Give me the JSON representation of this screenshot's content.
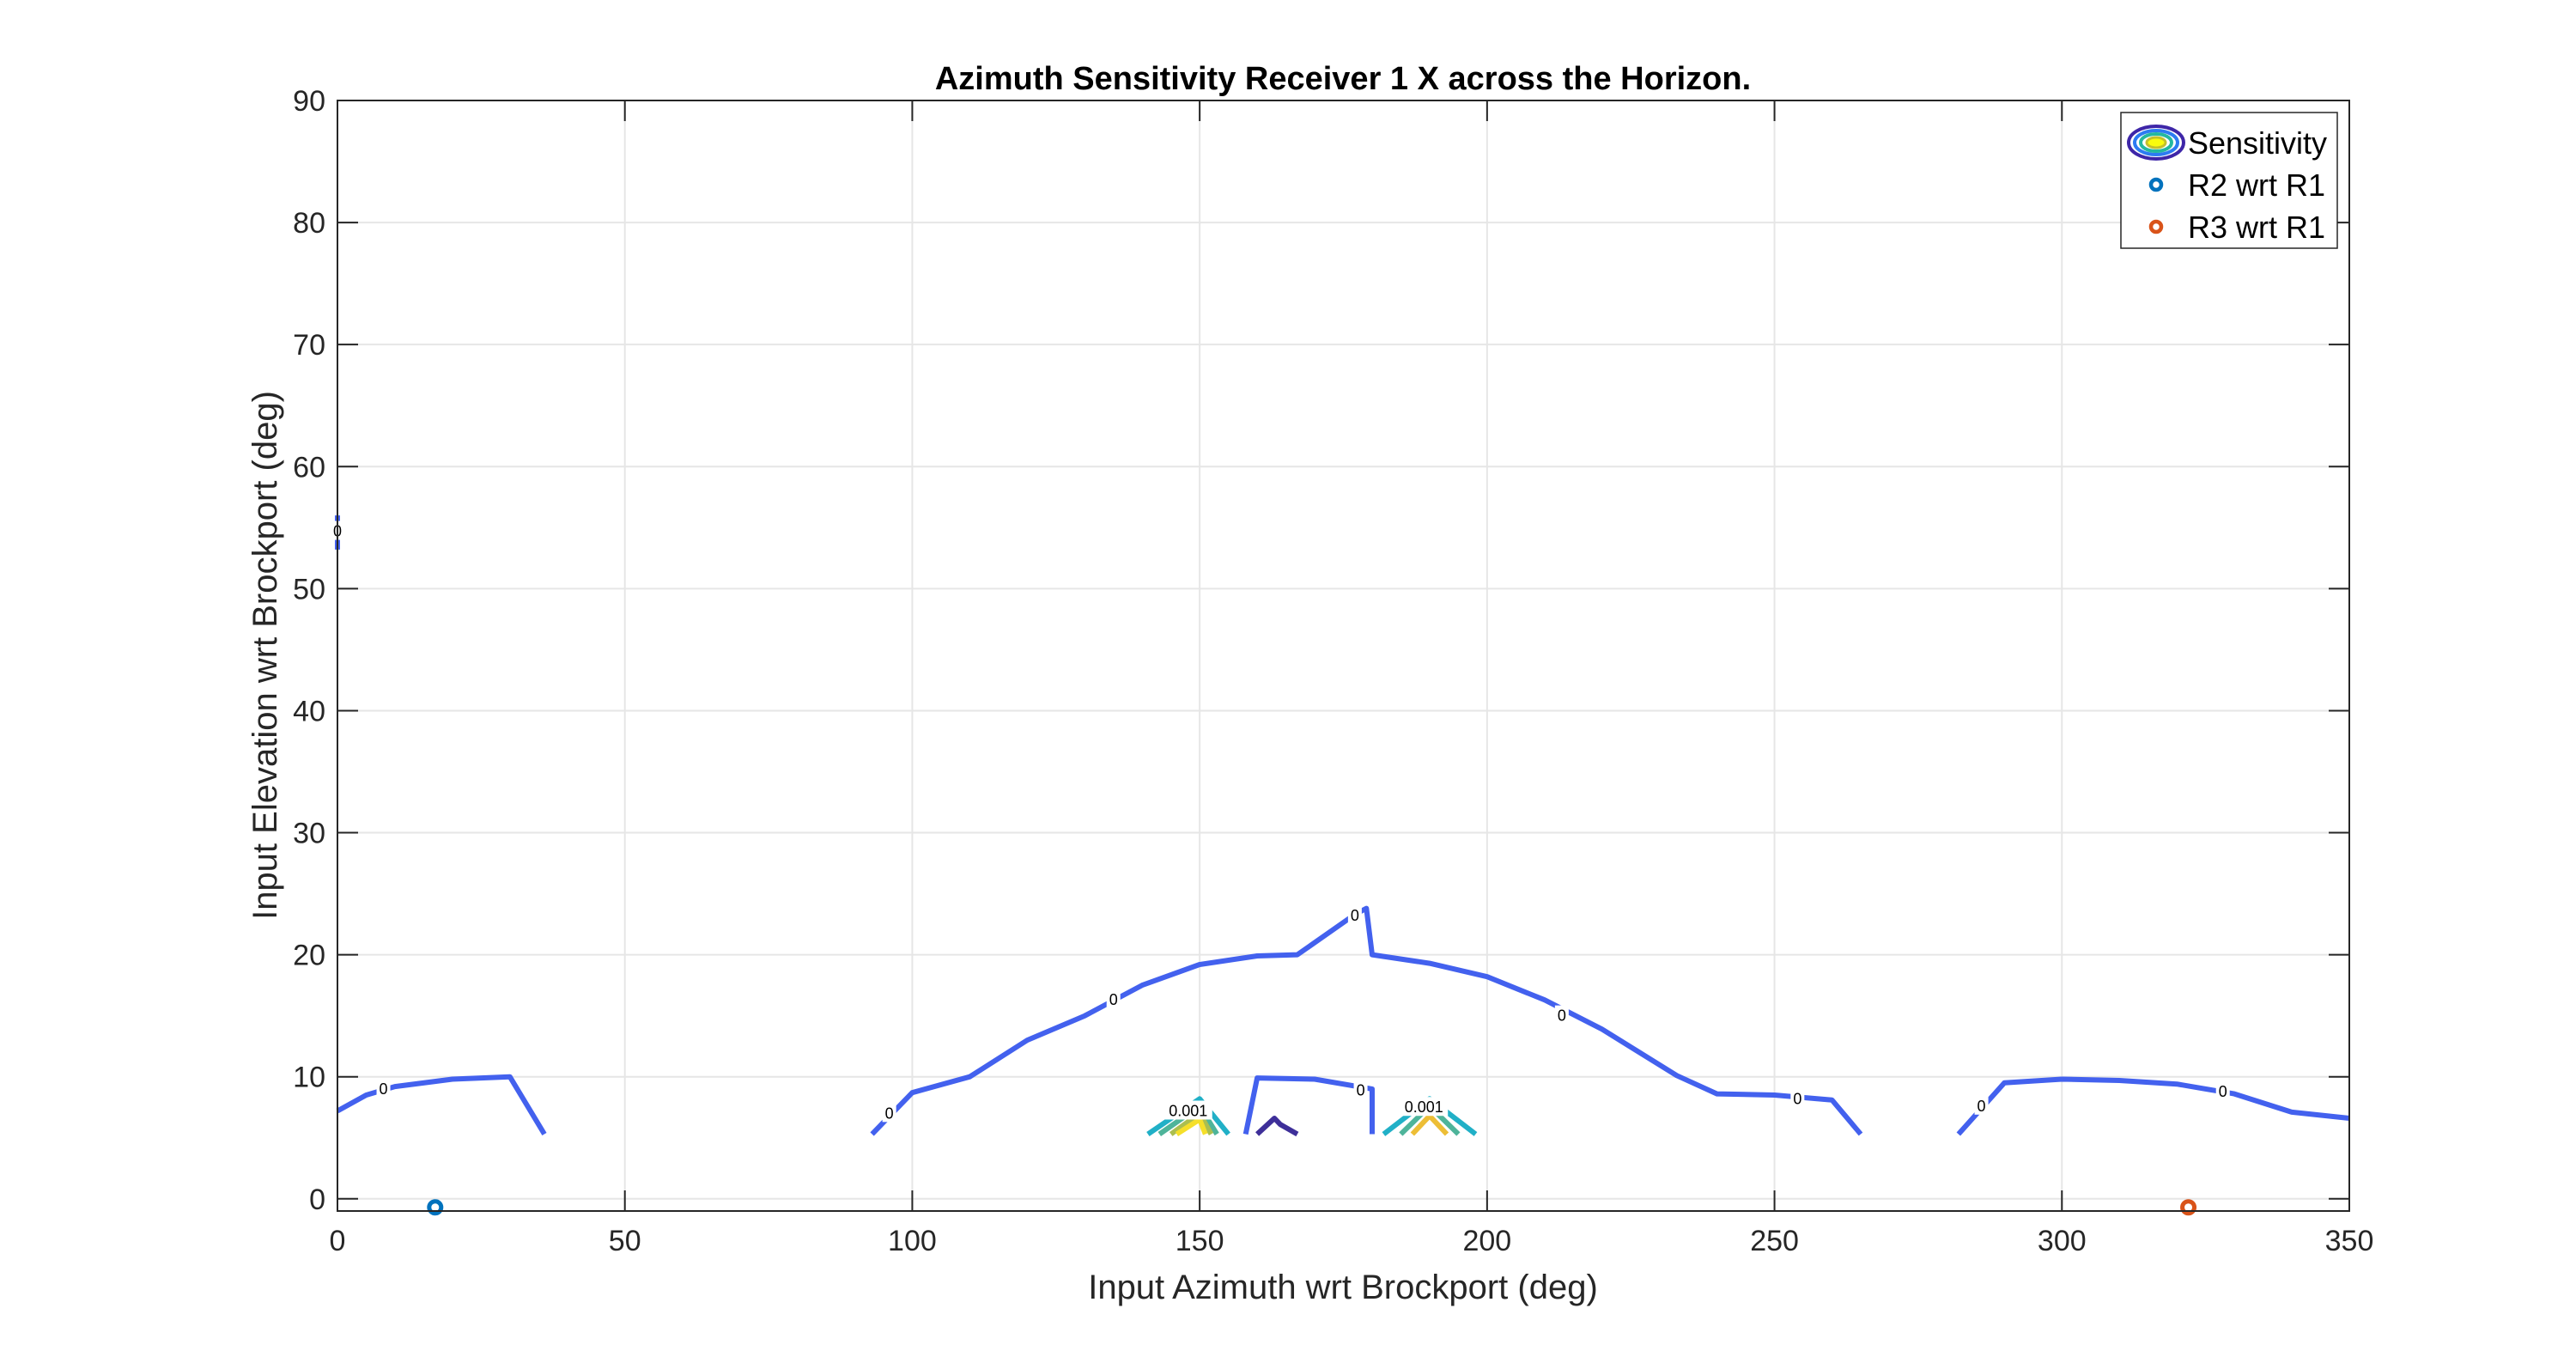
{
  "chart_data": {
    "type": "contour",
    "title": "Azimuth Sensitivity Receiver 1 X across the Horizon.",
    "xlabel": "Input Azimuth wrt Brockport (deg)",
    "ylabel": "Input Elevation wrt Brockport (deg)",
    "xlim": [
      0,
      350
    ],
    "ylim": [
      -1,
      90
    ],
    "xticks": [
      0,
      50,
      100,
      150,
      200,
      250,
      300,
      350
    ],
    "yticks": [
      0,
      10,
      20,
      30,
      40,
      50,
      60,
      70,
      80,
      90
    ],
    "grid": true,
    "legend": {
      "placement": "top-right",
      "entries": [
        {
          "label": "Sensitivity",
          "kind": "contour"
        },
        {
          "label": "R2 wrt R1",
          "kind": "marker",
          "color": "#0072BD"
        },
        {
          "label": "R3 wrt R1",
          "kind": "marker",
          "color": "#D95319"
        }
      ]
    },
    "points": [
      {
        "name": "R2 wrt R1",
        "x": 17,
        "y": -0.7,
        "color": "#0072BD"
      },
      {
        "name": "R3 wrt R1",
        "x": 322,
        "y": -0.7,
        "color": "#D95319"
      }
    ],
    "contours": [
      {
        "level": "0",
        "color": "#4361EE",
        "points": [
          [
            0,
            7.2
          ],
          [
            5,
            8.5
          ],
          [
            10,
            9.2
          ],
          [
            20,
            9.8
          ],
          [
            30,
            10
          ],
          [
            36,
            5.3
          ]
        ]
      },
      {
        "level": "0",
        "color": "#4361EE",
        "points": [
          [
            93,
            5.3
          ],
          [
            100,
            8.7
          ],
          [
            110,
            10
          ],
          [
            120,
            13
          ],
          [
            130,
            15
          ],
          [
            140,
            17.5
          ],
          [
            150,
            19.2
          ],
          [
            160,
            19.9
          ],
          [
            167,
            20
          ],
          [
            177,
            23.3
          ],
          [
            179,
            23.8
          ],
          [
            180,
            20
          ],
          [
            190,
            19.3
          ],
          [
            200,
            18.2
          ],
          [
            210,
            16.3
          ],
          [
            220,
            13.9
          ],
          [
            233,
            10.1
          ],
          [
            240,
            8.6
          ],
          [
            250,
            8.5
          ],
          [
            260,
            8.1
          ],
          [
            265,
            5.3
          ]
        ]
      },
      {
        "level": "0",
        "color": "#4361EE",
        "points": [
          [
            282,
            5.3
          ],
          [
            290,
            9.5
          ],
          [
            300,
            9.8
          ],
          [
            310,
            9.7
          ],
          [
            320,
            9.4
          ],
          [
            330,
            8.6
          ],
          [
            340,
            7.1
          ],
          [
            350,
            6.6
          ]
        ]
      },
      {
        "level": "0",
        "color": "#4361EE",
        "points": [
          [
            158,
            5.3
          ],
          [
            160,
            9.9
          ],
          [
            170,
            9.8
          ],
          [
            180,
            9
          ],
          [
            180,
            5.3
          ]
        ]
      },
      {
        "level": "0",
        "color": "#4361EE",
        "points": [
          [
            0,
            56
          ],
          [
            0,
            53.2
          ]
        ]
      },
      {
        "level": "",
        "color": "#3E2F99",
        "points": [
          [
            160,
            5.3
          ],
          [
            163,
            6.6
          ],
          [
            164,
            6.1
          ],
          [
            167,
            5.3
          ]
        ]
      },
      {
        "level": "0.001",
        "color": "#21B0C7",
        "points": [
          [
            141,
            5.3
          ],
          [
            150,
            8.2
          ],
          [
            155,
            5.3
          ]
        ]
      },
      {
        "level": "",
        "color": "#4EB49A",
        "points": [
          [
            143,
            5.3
          ],
          [
            150,
            7.6
          ],
          [
            153,
            5.3
          ]
        ]
      },
      {
        "level": "",
        "color": "#ABBE50",
        "points": [
          [
            145,
            5.3
          ],
          [
            150,
            7.0
          ],
          [
            152,
            5.3
          ]
        ]
      },
      {
        "level": "",
        "color": "#F5DF2A",
        "points": [
          [
            146,
            5.3
          ],
          [
            150,
            6.5
          ],
          [
            151,
            5.3
          ]
        ]
      },
      {
        "level": "0.001",
        "color": "#21B0C7",
        "points": [
          [
            182,
            5.3
          ],
          [
            190,
            8.2
          ],
          [
            198,
            5.3
          ]
        ]
      },
      {
        "level": "",
        "color": "#4EB49A",
        "points": [
          [
            185,
            5.3
          ],
          [
            190,
            7.6
          ],
          [
            195,
            5.3
          ]
        ]
      },
      {
        "level": "",
        "color": "#EDBE36",
        "points": [
          [
            187,
            5.3
          ],
          [
            190,
            6.8
          ],
          [
            193,
            5.3
          ]
        ]
      }
    ],
    "contour_labels": [
      {
        "text": "0",
        "x": 8,
        "y": 9
      },
      {
        "text": "0",
        "x": 96,
        "y": 7
      },
      {
        "text": "0",
        "x": 135,
        "y": 16.3
      },
      {
        "text": "0",
        "x": 177,
        "y": 23.2
      },
      {
        "text": "0",
        "x": 213,
        "y": 15
      },
      {
        "text": "0",
        "x": 254,
        "y": 8.2
      },
      {
        "text": "0",
        "x": 286,
        "y": 7.6
      },
      {
        "text": "0",
        "x": 328,
        "y": 8.8
      },
      {
        "text": "0",
        "x": 178,
        "y": 8.9
      },
      {
        "text": "0",
        "x": 0,
        "y": 54.7
      },
      {
        "text": "0.001",
        "x": 148,
        "y": 7.2
      },
      {
        "text": "0.001",
        "x": 189,
        "y": 7.5
      }
    ]
  }
}
